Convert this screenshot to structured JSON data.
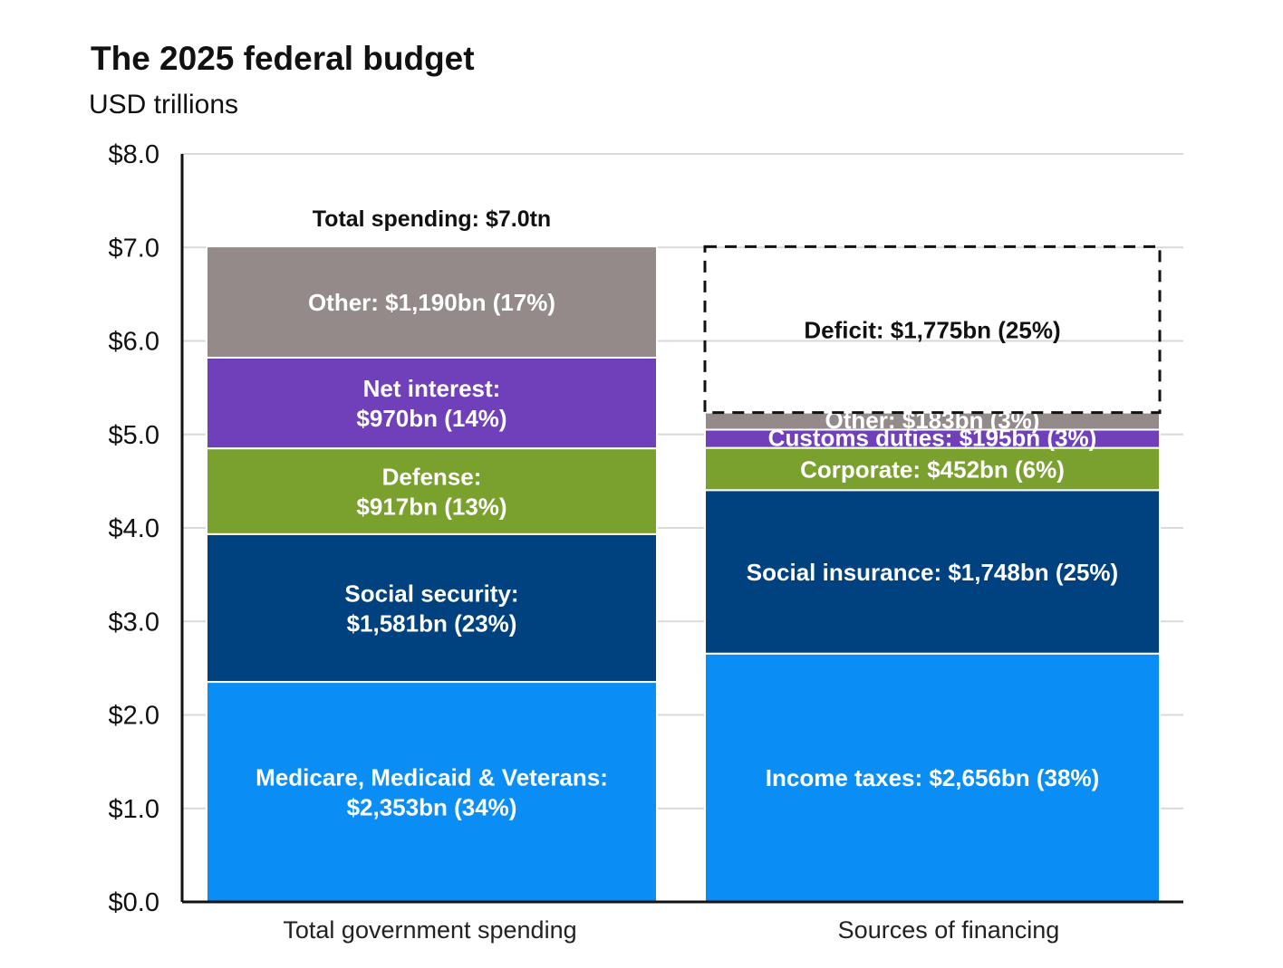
{
  "title": "The 2025 federal budget",
  "subtitle": "USD trillions",
  "chart_data": {
    "type": "bar",
    "stacked": true,
    "title": "The 2025 federal budget",
    "ylabel": "USD trillions",
    "ylim": [
      0,
      8
    ],
    "yticks": [
      0,
      1,
      2,
      3,
      4,
      5,
      6,
      7,
      8
    ],
    "ytick_labels": [
      "$0.0",
      "$1.0",
      "$2.0",
      "$3.0",
      "$4.0",
      "$5.0",
      "$6.0",
      "$7.0",
      "$8.0"
    ],
    "grid": true,
    "categories": [
      "Total government spending",
      "Sources of financing"
    ],
    "bars": [
      {
        "category": "Total government spending",
        "annotation": "Total spending: $7.0tn",
        "segments": [
          {
            "name": "Medicare, Medicaid & Veterans",
            "value": 2.353,
            "label_lines": [
              "Medicare, Medicaid & Veterans:",
              "$2,353bn (34%)"
            ],
            "color": "#0a8ef5",
            "text_color": "#ffffff"
          },
          {
            "name": "Social security",
            "value": 1.581,
            "label_lines": [
              "Social security:",
              "$1,581bn (23%)"
            ],
            "color": "#00427f",
            "text_color": "#ffffff"
          },
          {
            "name": "Defense",
            "value": 0.917,
            "label_lines": [
              "Defense:",
              "$917bn (13%)"
            ],
            "color": "#7aa12e",
            "text_color": "#ffffff"
          },
          {
            "name": "Net interest",
            "value": 0.97,
            "label_lines": [
              "Net interest:",
              "$970bn (14%)"
            ],
            "color": "#7040bb",
            "text_color": "#ffffff"
          },
          {
            "name": "Other",
            "value": 1.19,
            "label_lines": [
              "Other: $1,190bn (17%)"
            ],
            "color": "#948a8a",
            "text_color": "#ffffff"
          }
        ]
      },
      {
        "category": "Sources of financing",
        "segments": [
          {
            "name": "Income taxes",
            "value": 2.656,
            "label_lines": [
              "Income taxes: $2,656bn (38%)"
            ],
            "color": "#0a8ef5",
            "text_color": "#ffffff"
          },
          {
            "name": "Social insurance",
            "value": 1.748,
            "label_lines": [
              "Social insurance: $1,748bn (25%)"
            ],
            "color": "#00427f",
            "text_color": "#ffffff"
          },
          {
            "name": "Corporate",
            "value": 0.452,
            "label_lines": [
              "Corporate: $452bn (6%)"
            ],
            "color": "#7aa12e",
            "text_color": "#ffffff"
          },
          {
            "name": "Customs duties",
            "value": 0.195,
            "label_lines": [
              "Customs duties: $195bn (3%)"
            ],
            "color": "#7040bb",
            "text_color": "#ffffff"
          },
          {
            "name": "Other",
            "value": 0.183,
            "label_lines": [
              "Other: $183bn (3%)"
            ],
            "color": "#948a8a",
            "text_color": "#ffffff"
          },
          {
            "name": "Deficit",
            "value": 1.775,
            "label_lines": [
              "Deficit: $1,775bn (25%)"
            ],
            "color": "none",
            "text_color": "#111111",
            "dashed": true
          }
        ]
      }
    ]
  }
}
